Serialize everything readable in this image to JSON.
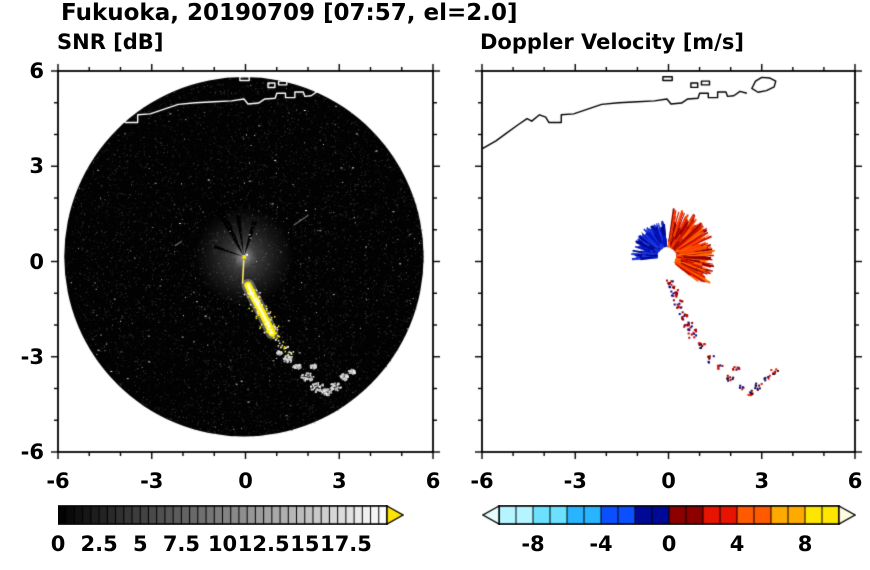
{
  "labels": {
    "title": "Fukuoka, 20190709 [07:57, el=2.0]",
    "snr_title": "SNR [dB]",
    "doppler_title": "Doppler Velocity [m/s]",
    "ytick": [
      "6",
      "3",
      "0",
      "-3",
      "-6"
    ],
    "xtick_snr": [
      "-6",
      "-3",
      "0",
      "3",
      "6"
    ],
    "xtick_dop": [
      "-6",
      "-3",
      "0",
      "3",
      "6"
    ],
    "cbar_snr": [
      "0",
      "2.5",
      "5",
      "7.5",
      "10",
      "12.5",
      "15",
      "17.5"
    ],
    "cbar_dop": [
      "-8",
      "-4",
      "0",
      "4",
      "8"
    ]
  },
  "coastline": {
    "mainland": [
      [
        -6,
        3.55
      ],
      [
        -5.55,
        3.8
      ],
      [
        -5.2,
        4.05
      ],
      [
        -4.85,
        4.3
      ],
      [
        -4.55,
        4.5
      ],
      [
        -4.4,
        4.42
      ],
      [
        -4.15,
        4.62
      ],
      [
        -3.95,
        4.55
      ],
      [
        -3.85,
        4.38
      ],
      [
        -3.45,
        4.38
      ],
      [
        -3.45,
        4.62
      ],
      [
        -3.05,
        4.65
      ],
      [
        -2.6,
        4.8
      ],
      [
        -2.15,
        4.95
      ],
      [
        -1.6,
        5.0
      ],
      [
        -1.0,
        5.03
      ],
      [
        -0.45,
        5.06
      ],
      [
        -0.05,
        5.12
      ],
      [
        0.08,
        4.96
      ],
      [
        0.42,
        4.99
      ],
      [
        0.62,
        5.12
      ],
      [
        0.95,
        5.14
      ],
      [
        1.0,
        5.3
      ],
      [
        1.28,
        5.3
      ],
      [
        1.28,
        5.16
      ],
      [
        1.58,
        5.16
      ],
      [
        1.58,
        5.34
      ],
      [
        1.85,
        5.34
      ],
      [
        1.9,
        5.2
      ],
      [
        2.1,
        5.22
      ],
      [
        2.3,
        5.36
      ],
      [
        2.52,
        5.3
      ]
    ],
    "island": [
      [
        2.68,
        5.45
      ],
      [
        2.88,
        5.33
      ],
      [
        3.15,
        5.38
      ],
      [
        3.4,
        5.5
      ],
      [
        3.45,
        5.68
      ],
      [
        3.25,
        5.78
      ],
      [
        3.0,
        5.8
      ],
      [
        2.8,
        5.68
      ]
    ],
    "structures": [
      [
        0.72,
        5.62,
        0.22,
        0.14
      ],
      [
        1.06,
        5.68,
        0.26,
        0.12
      ],
      [
        -0.18,
        5.82,
        0.3,
        0.12
      ]
    ]
  },
  "chart_data": [
    {
      "type": "heatmap",
      "subtype": "radar_ppi",
      "title": "SNR [dB]",
      "xlabel": "",
      "ylabel": "",
      "xlim": [
        -6,
        6
      ],
      "ylim": [
        -6,
        6
      ],
      "xticks": [
        -6,
        -3,
        0,
        3,
        6
      ],
      "yticks": [
        -6,
        -3,
        0,
        3,
        6
      ],
      "minor_tick_step": 1,
      "colorbar": {
        "range": [
          0,
          20
        ],
        "step": 0.5,
        "tick_step": 0.5,
        "tick_labels": [
          0,
          2.5,
          5,
          7.5,
          10,
          12.5,
          15,
          17.5
        ],
        "palette": "grayscale-black-to-white",
        "over_arrow_color": "#ffe400"
      },
      "description": "Black circular scan disk with noise speckle, gray glow and blocked wedges at center, bright yellow clutter streak toward the SSW, scattered white echoes to the south.",
      "scene": {
        "background": "#ffffff",
        "coastline_color": "#ffffff",
        "scan_disk": {
          "center": [
            -0.05,
            0.15
          ],
          "radius": 5.75,
          "color": "#020202"
        },
        "noise_speckle": {
          "count": 12000,
          "seed": 11
        },
        "center_glow_radius": 1.6,
        "blocked_wedges": [
          {
            "az": 333,
            "half_deg": 5,
            "len": 1.7
          },
          {
            "az": 352,
            "half_deg": 3,
            "len": 1.35
          },
          {
            "az": 17,
            "half_deg": 4,
            "len": 1.2
          },
          {
            "az": 289,
            "half_deg": 3,
            "len": 1.0
          }
        ],
        "center_dot_color": "#ffee00",
        "beam_line": {
          "az": 183,
          "r0": 0.1,
          "r1": 0.85
        },
        "bright_streak": {
          "points": [
            [
              0.08,
              -0.75
            ],
            [
              0.28,
              -1.15
            ],
            [
              0.5,
              -1.55
            ],
            [
              0.7,
              -1.95
            ],
            [
              0.85,
              -2.25
            ]
          ],
          "width": 0.24,
          "core_color": "#ffee00"
        },
        "streak_tail_dots": [
          [
            0.98,
            -2.42
          ],
          [
            1.12,
            -2.58
          ],
          [
            1.27,
            -2.76
          ],
          [
            1.42,
            -2.93
          ]
        ],
        "echo_blobs": [
          [
            1.35,
            -3.05,
            0.17
          ],
          [
            1.62,
            -3.28,
            0.13
          ],
          [
            1.95,
            -3.62,
            0.2
          ],
          [
            2.28,
            -3.95,
            0.23
          ],
          [
            2.58,
            -4.08,
            0.16
          ],
          [
            2.86,
            -3.92,
            0.18
          ],
          [
            3.15,
            -3.62,
            0.15
          ],
          [
            3.38,
            -3.45,
            0.11
          ],
          [
            2.15,
            -3.28,
            0.1
          ],
          [
            1.05,
            -2.85,
            0.09
          ]
        ],
        "faint_streaks": [
          [
            1.55,
            1.15,
            2.0,
            1.45
          ],
          [
            -2.25,
            0.5,
            -2.05,
            0.63
          ]
        ]
      }
    },
    {
      "type": "heatmap",
      "subtype": "radar_ppi",
      "title": "Doppler Velocity [m/s]",
      "xlabel": "",
      "ylabel": "",
      "xlim": [
        -6,
        6
      ],
      "ylim": [
        -6,
        6
      ],
      "xticks": [
        -6,
        -3,
        0,
        3,
        6
      ],
      "yticks": [
        -6,
        -3,
        0,
        3,
        6
      ],
      "minor_tick_step": 1,
      "colorbar": {
        "range": [
          -10,
          10
        ],
        "step": 2,
        "tick_step": 1,
        "tick_labels": [
          -8,
          -4,
          0,
          4,
          8
        ],
        "segment_colors": [
          "#b4f5ff",
          "#6ce0ff",
          "#28b4ff",
          "#0a50ff",
          "#000896",
          "#8c0000",
          "#e61400",
          "#ff5a00",
          "#ffaa00",
          "#ffe600"
        ],
        "under_arrow_color": "#e6feff",
        "over_arrow_color": "#fffce0"
      },
      "description": "White background with black coastline; near the radar center a fan of dark-blue (negative) velocities to the NW and red-orange (positive) velocities to the NE/E around a small white hole; red/dark speckle trail to the south and scattered specks to the SSE.",
      "scene": {
        "background": "#ffffff",
        "coastline_color": "#000000",
        "center": [
          -0.05,
          0.15
        ],
        "center_hole_radius": 0.27,
        "velocity_fans": [
          {
            "az0": 265,
            "az1": 355,
            "r_max": 1.15,
            "count": 240,
            "colors": [
              "#000890",
              "#0018c8",
              "#2038e0"
            ],
            "label": "negative / approaching"
          },
          {
            "az0": 8,
            "az1": 128,
            "r_max": 1.6,
            "count": 360,
            "colors": [
              "#8c0000",
              "#d21000",
              "#ff4600",
              "#ff6e00"
            ],
            "label": "positive / receding"
          }
        ],
        "speck_trail": {
          "points": [
            [
              0.05,
              -0.68
            ],
            [
              0.14,
              -0.98
            ],
            [
              0.28,
              -1.32
            ],
            [
              0.44,
              -1.68
            ],
            [
              0.6,
              -2.0
            ],
            [
              0.74,
              -2.24
            ]
          ],
          "colors": [
            "#000890",
            "#c80000",
            "#8c0000"
          ]
        },
        "far_specks": [
          [
            1.35,
            -3.05
          ],
          [
            1.62,
            -3.28
          ],
          [
            1.95,
            -3.62
          ],
          [
            2.28,
            -3.95
          ],
          [
            2.58,
            -4.08
          ],
          [
            2.86,
            -3.92
          ],
          [
            3.15,
            -3.62
          ],
          [
            2.15,
            -3.28
          ],
          [
            1.05,
            -2.6
          ],
          [
            3.38,
            -3.45
          ]
        ],
        "speck_colors": [
          "#a00000",
          "#e61400",
          "#500000",
          "#000878"
        ]
      }
    }
  ]
}
